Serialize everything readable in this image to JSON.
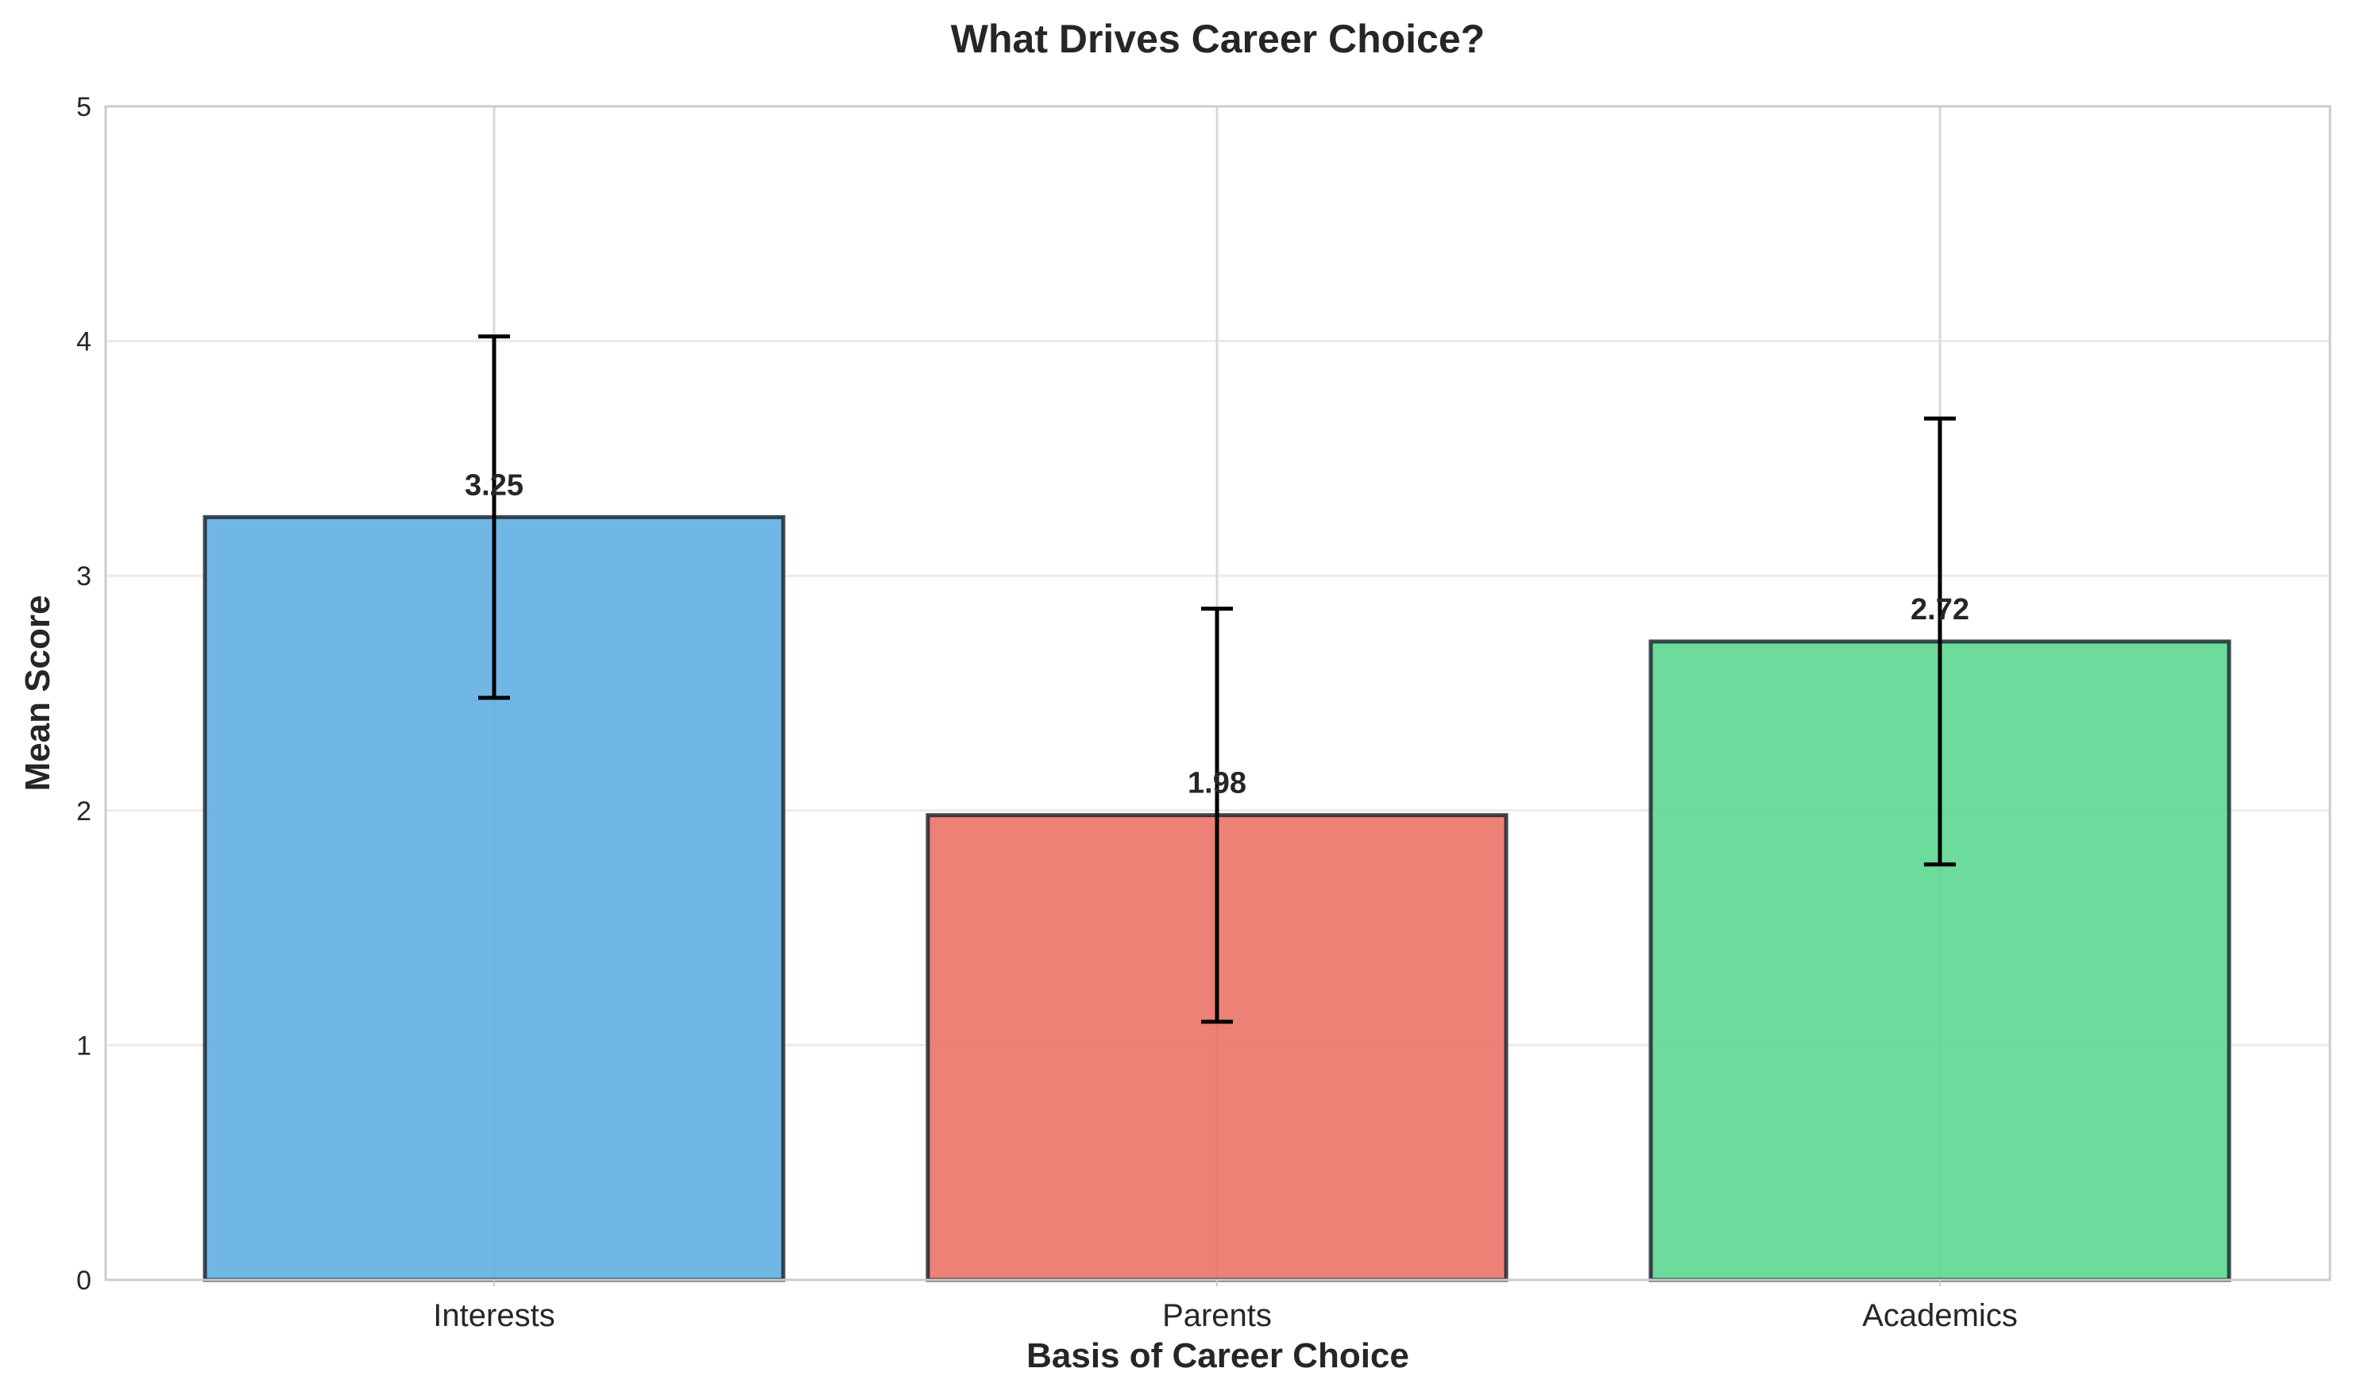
{
  "chart_data": {
    "type": "bar",
    "title": "What Drives Career Choice?",
    "xlabel": "Basis of Career Choice",
    "ylabel": "Mean Score",
    "ylim": [
      0,
      5
    ],
    "yticks": [
      "0",
      "1",
      "2",
      "3",
      "4",
      "5"
    ],
    "categories": [
      "Interests",
      "Parents",
      "Academics"
    ],
    "values": [
      3.25,
      1.98,
      2.72
    ],
    "value_labels": [
      "3.25",
      "1.98",
      "2.72"
    ],
    "error_low": [
      2.48,
      1.1,
      1.77
    ],
    "error_high": [
      4.02,
      2.86,
      3.67
    ],
    "colors": [
      "#5DADE2",
      "#EC7063",
      "#58D68D"
    ],
    "grid": true
  }
}
